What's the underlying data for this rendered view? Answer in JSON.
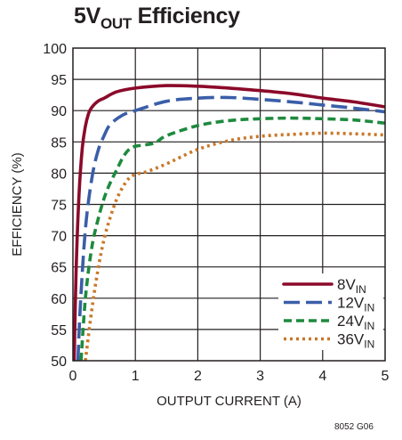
{
  "title": {
    "main": "5V",
    "sub": "OUT",
    "tail": " Efficiency"
  },
  "figure_id": "8052 G06",
  "colors": {
    "grid": "#231f20",
    "series": [
      "#8b0a2a",
      "#3a5ea8",
      "#1e8a3e",
      "#c8782a"
    ],
    "text": "#231f20"
  },
  "chart_data": {
    "type": "line",
    "title": "5VOUT Efficiency",
    "xlabel": "OUTPUT CURRENT (A)",
    "ylabel": "EFFICIENCY (%)",
    "xlim": [
      0,
      5
    ],
    "ylim": [
      50,
      100
    ],
    "xticks": [
      0,
      1,
      2,
      3,
      4,
      5
    ],
    "yticks": [
      50,
      55,
      60,
      65,
      70,
      75,
      80,
      85,
      90,
      95,
      100
    ],
    "grid": true,
    "legend_position": "bottom-right",
    "series": [
      {
        "name": "8VIN",
        "label_main": "8V",
        "label_sub": "IN",
        "dash": "solid",
        "x": [
          0.02,
          0.05,
          0.1,
          0.15,
          0.2,
          0.25,
          0.3,
          0.4,
          0.5,
          0.7,
          1.0,
          1.5,
          2.0,
          2.5,
          3.0,
          3.5,
          4.0,
          4.5,
          5.0
        ],
        "y": [
          50,
          64,
          77,
          84,
          87.5,
          89.5,
          90.5,
          91.5,
          92,
          93,
          93.6,
          94,
          93.9,
          93.6,
          93.2,
          92.7,
          92,
          91.4,
          90.6
        ]
      },
      {
        "name": "12VIN",
        "label_main": "12V",
        "label_sub": "IN",
        "dash": "long",
        "x": [
          0.08,
          0.12,
          0.2,
          0.3,
          0.4,
          0.5,
          0.6,
          0.8,
          1.0,
          1.5,
          2.0,
          2.5,
          3.0,
          3.5,
          4.0,
          4.5,
          5.0
        ],
        "y": [
          50,
          59,
          71,
          79,
          83.5,
          86,
          87.8,
          89.3,
          90,
          91.5,
          92,
          92.1,
          91.8,
          91.4,
          90.9,
          90.4,
          89.8
        ]
      },
      {
        "name": "24VIN",
        "label_main": "24V",
        "label_sub": "IN",
        "dash": "medium",
        "x": [
          0.13,
          0.2,
          0.3,
          0.4,
          0.5,
          0.6,
          0.7,
          0.8,
          0.9,
          1.0,
          1.3,
          1.5,
          2.0,
          2.5,
          3.0,
          3.5,
          4.0,
          4.5,
          5.0
        ],
        "y": [
          50,
          60,
          68,
          72.5,
          76,
          78.5,
          80.5,
          82.5,
          83.8,
          84.3,
          84.8,
          86,
          87.6,
          88.4,
          88.7,
          88.8,
          88.7,
          88.5,
          88
        ]
      },
      {
        "name": "36VIN",
        "label_main": "36V",
        "label_sub": "IN",
        "dash": "dotted",
        "x": [
          0.2,
          0.3,
          0.4,
          0.5,
          0.6,
          0.7,
          0.8,
          0.9,
          1.0,
          1.2,
          1.5,
          2.0,
          2.5,
          3.0,
          3.5,
          4.0,
          4.5,
          5.0
        ],
        "y": [
          50,
          58,
          64.5,
          69.5,
          73,
          75.8,
          77.8,
          79.2,
          79.8,
          80.3,
          81.5,
          83.8,
          85.2,
          85.9,
          86.2,
          86.4,
          86.3,
          86.1
        ]
      }
    ]
  }
}
